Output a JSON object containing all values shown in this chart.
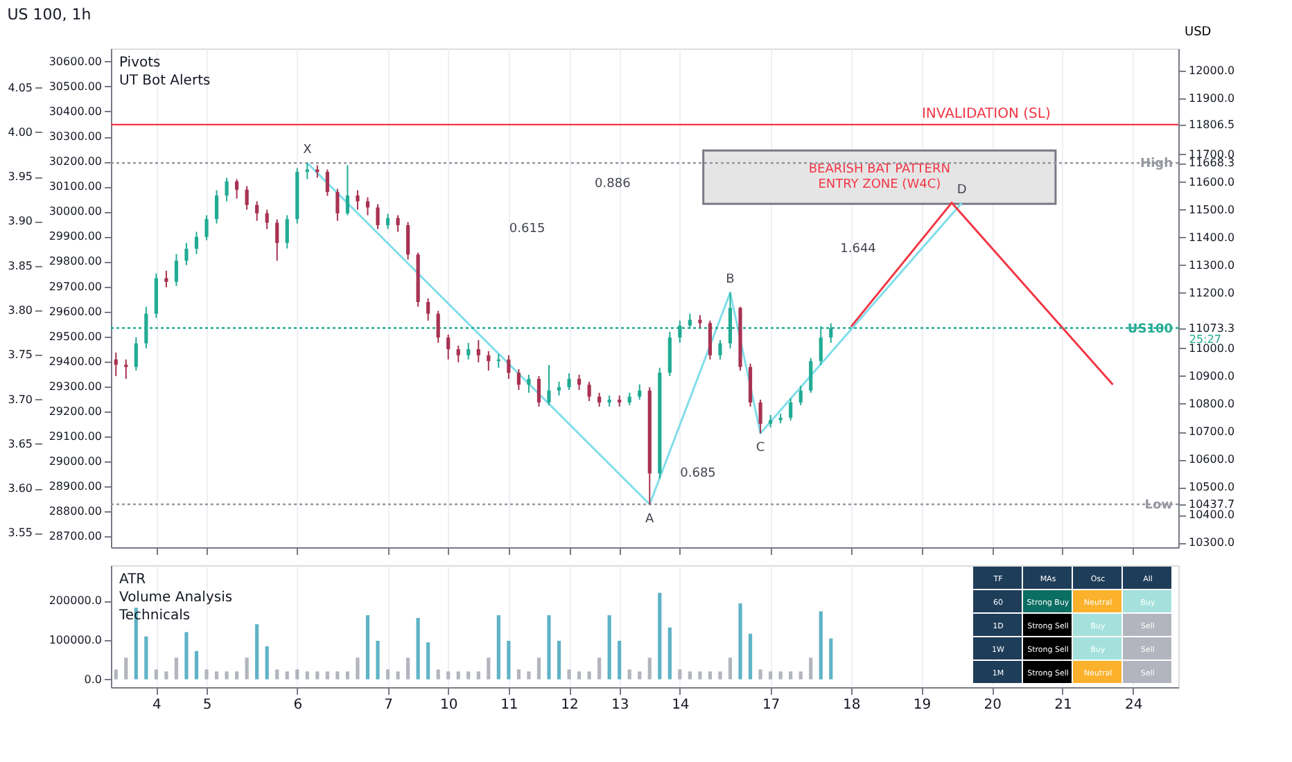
{
  "chart_data": [
    {
      "type": "candlestick",
      "title": "US 100, 1h",
      "annotations": [
        "Pivots",
        "UT Bot Alerts",
        "0.886",
        "0.615",
        "1.644",
        "0.685",
        "25:27"
      ],
      "bands": [
        {
          "axis": "y",
          "from": 11521,
          "to": 11713,
          "label": "BEARISH BAT PATTERN\nENTRY ZONE (W4C)",
          "color": "#e5e5e5"
        }
      ],
      "categories": [
        null,
        null,
        null,
        null,
        "4",
        null,
        null,
        null,
        null,
        "5",
        null,
        null,
        null,
        null,
        null,
        null,
        null,
        null,
        "6",
        null,
        null,
        null,
        null,
        null,
        null,
        null,
        null,
        "7",
        null,
        null,
        null,
        null,
        null,
        "10",
        null,
        null,
        null,
        null,
        null,
        "11",
        null,
        null,
        null,
        null,
        null,
        "12",
        null,
        null,
        null,
        null,
        "13",
        null,
        null,
        null,
        null,
        null,
        "14",
        null,
        null,
        null,
        null,
        null,
        null,
        null,
        null,
        "17",
        null,
        null,
        null,
        null,
        null,
        null,
        null,
        "18",
        null,
        null,
        null,
        null,
        null,
        null,
        "19",
        null,
        null,
        null,
        null,
        null,
        null,
        "20",
        null,
        null,
        null,
        null,
        null,
        null,
        "21",
        null,
        null,
        null,
        null,
        null,
        null,
        "24",
        null,
        null,
        null,
        null
      ],
      "ohlc": [
        [
          10960,
          10985,
          10900,
          10941
        ],
        [
          10941,
          10960,
          10890,
          10933
        ],
        [
          10933,
          11040,
          10920,
          11018
        ],
        [
          11018,
          11150,
          11000,
          11125
        ],
        [
          11125,
          11270,
          11110,
          11253
        ],
        [
          11253,
          11280,
          11220,
          11240
        ],
        [
          11240,
          11340,
          11225,
          11316
        ],
        [
          11316,
          11380,
          11300,
          11359
        ],
        [
          11359,
          11420,
          11340,
          11402
        ],
        [
          11402,
          11480,
          11390,
          11466
        ],
        [
          11466,
          11570,
          11450,
          11551
        ],
        [
          11551,
          11615,
          11530,
          11602
        ],
        [
          11602,
          11610,
          11540,
          11572
        ],
        [
          11572,
          11585,
          11500,
          11517
        ],
        [
          11517,
          11530,
          11460,
          11487
        ],
        [
          11487,
          11500,
          11430,
          11453
        ],
        [
          11453,
          11465,
          11316,
          11380
        ],
        [
          11380,
          11480,
          11360,
          11466
        ],
        [
          11466,
          11650,
          11450,
          11636
        ],
        [
          11636,
          11668.3,
          11610,
          11645
        ],
        [
          11645,
          11660,
          11615,
          11636
        ],
        [
          11636,
          11645,
          11550,
          11564
        ],
        [
          11564,
          11575,
          11460,
          11487
        ],
        [
          11487,
          11660,
          11480,
          11551
        ],
        [
          11551,
          11570,
          11500,
          11530
        ],
        [
          11530,
          11545,
          11480,
          11508
        ],
        [
          11508,
          11520,
          11430,
          11444
        ],
        [
          11444,
          11485,
          11430,
          11470
        ],
        [
          11470,
          11480,
          11420,
          11444
        ],
        [
          11444,
          11455,
          11320,
          11338
        ],
        [
          11338,
          11345,
          11150,
          11167
        ],
        [
          11167,
          11180,
          11100,
          11125
        ],
        [
          11125,
          11135,
          11020,
          11039
        ],
        [
          11039,
          11050,
          10960,
          10997
        ],
        [
          10997,
          11010,
          10950,
          10975
        ],
        [
          10975,
          11020,
          10960,
          10997
        ],
        [
          10997,
          11030,
          10950,
          10975
        ],
        [
          10975,
          10990,
          10920,
          10954
        ],
        [
          10954,
          10980,
          10930,
          10960
        ],
        [
          10960,
          10975,
          10890,
          10912
        ],
        [
          10912,
          10925,
          10850,
          10869
        ],
        [
          10869,
          10905,
          10840,
          10890
        ],
        [
          10890,
          10900,
          10790,
          10805
        ],
        [
          10805,
          10940,
          10795,
          10848
        ],
        [
          10848,
          10880,
          10830,
          10860
        ],
        [
          10860,
          10910,
          10850,
          10890
        ],
        [
          10890,
          10905,
          10850,
          10869
        ],
        [
          10869,
          10880,
          10810,
          10826
        ],
        [
          10826,
          10840,
          10790,
          10805
        ],
        [
          10805,
          10830,
          10790,
          10815
        ],
        [
          10815,
          10830,
          10790,
          10805
        ],
        [
          10805,
          10840,
          10795,
          10826
        ],
        [
          10826,
          10870,
          10815,
          10848
        ],
        [
          10848,
          10860,
          10437.7,
          10549
        ],
        [
          10549,
          10930,
          10530,
          10912
        ],
        [
          10912,
          11060,
          10900,
          11039
        ],
        [
          11039,
          11100,
          11020,
          11082
        ],
        [
          11082,
          11125,
          11070,
          11103
        ],
        [
          11103,
          11120,
          11075,
          11091
        ],
        [
          11091,
          11100,
          10960,
          10975
        ],
        [
          10975,
          11030,
          10960,
          11018
        ],
        [
          11018,
          11201,
          11000,
          11146
        ],
        [
          11146,
          11150,
          10920,
          10933
        ],
        [
          10933,
          10945,
          10790,
          10805
        ],
        [
          10805,
          10815,
          10694,
          10728
        ],
        [
          10728,
          10760,
          10715,
          10741
        ],
        [
          10741,
          10765,
          10730,
          10750
        ],
        [
          10750,
          10820,
          10740,
          10805
        ],
        [
          10805,
          10865,
          10795,
          10848
        ],
        [
          10848,
          10965,
          10840,
          10954
        ],
        [
          10954,
          11080,
          10940,
          11039
        ],
        [
          11039,
          11090,
          11020,
          11073.3
        ],
        null,
        null,
        null,
        null,
        null,
        null,
        null,
        null,
        null,
        null,
        null,
        null,
        null,
        null,
        null,
        null,
        null,
        null,
        null,
        null,
        null,
        null,
        null,
        null,
        null,
        null,
        null,
        null,
        null,
        null,
        null,
        null,
        null,
        null
      ],
      "colors": [
        "#a83252",
        "#a83252",
        "#22ab94",
        "#22ab94",
        "#22ab94",
        "#a83252",
        "#22ab94",
        "#22ab94",
        "#22ab94",
        "#22ab94",
        "#22ab94",
        "#22ab94",
        "#a83252",
        "#a83252",
        "#a83252",
        "#a83252",
        "#a83252",
        "#22ab94",
        "#22ab94",
        "#22ab94",
        "#a83252",
        "#a83252",
        "#a83252",
        "#22ab94",
        "#a83252",
        "#a83252",
        "#a83252",
        "#22ab94",
        "#a83252",
        "#a83252",
        "#a83252",
        "#a83252",
        "#a83252",
        "#a83252",
        "#a83252",
        "#22ab94",
        "#a83252",
        "#a83252",
        "#22ab94",
        "#a83252",
        "#a83252",
        "#22ab94",
        "#a83252",
        "#22ab94",
        "#22ab94",
        "#22ab94",
        "#a83252",
        "#a83252",
        "#a83252",
        "#22ab94",
        "#a83252",
        "#22ab94",
        "#22ab94",
        "#a83252",
        "#22ab94",
        "#22ab94",
        "#22ab94",
        "#22ab94",
        "#a83252",
        "#a83252",
        "#22ab94",
        "#22ab94",
        "#a83252",
        "#a83252",
        "#a83252",
        "#22ab94",
        "#22ab94",
        "#22ab94",
        "#22ab94",
        "#22ab94",
        "#22ab94",
        "#22ab94",
        null,
        null,
        null,
        null,
        null,
        null,
        null,
        null,
        null,
        null,
        null,
        null,
        null,
        null,
        null,
        null,
        null,
        null,
        null,
        null,
        null,
        null,
        null,
        null,
        null,
        null,
        null,
        null,
        null,
        null,
        null,
        null,
        null,
        null
      ],
      "series": [
        {
          "type": "line",
          "color": "#80deea",
          "values": [
            null,
            null,
            null,
            null,
            null,
            null,
            null,
            null,
            null,
            null,
            null,
            null,
            null,
            null,
            null,
            null,
            null,
            null,
            null,
            11668.3,
            null,
            null,
            null,
            null,
            null,
            null,
            null,
            null,
            null,
            null,
            null,
            null,
            null,
            null,
            null,
            null,
            null,
            null,
            null,
            null,
            null,
            null,
            null,
            null,
            null,
            null,
            null,
            null,
            null,
            null,
            null,
            null,
            null,
            10437.7,
            null,
            null,
            null,
            null,
            null,
            null,
            null,
            11201,
            null,
            null,
            10694,
            null,
            null,
            null,
            null,
            null,
            null,
            null,
            null,
            null,
            null,
            null,
            null,
            null,
            null,
            null,
            null,
            null,
            null,
            null,
            11525,
            null,
            null,
            null,
            null,
            null,
            null,
            null,
            null,
            null,
            null,
            null,
            null,
            null,
            null,
            null,
            null,
            null,
            null,
            null,
            null,
            null
          ],
          "value_labels": [
            null,
            null,
            null,
            null,
            null,
            null,
            null,
            null,
            null,
            null,
            null,
            null,
            null,
            null,
            null,
            null,
            null,
            null,
            null,
            "X",
            null,
            null,
            null,
            null,
            null,
            null,
            null,
            null,
            null,
            null,
            null,
            null,
            null,
            null,
            null,
            null,
            null,
            null,
            null,
            null,
            null,
            null,
            null,
            null,
            null,
            null,
            null,
            null,
            null,
            null,
            null,
            null,
            null,
            "A",
            null,
            null,
            null,
            null,
            null,
            null,
            null,
            "B",
            null,
            null,
            "C",
            null,
            null,
            null,
            null,
            null,
            null,
            null,
            null,
            null,
            null,
            null,
            null,
            null,
            null,
            null,
            null,
            null,
            null,
            null,
            "D",
            null,
            null,
            null,
            null,
            null,
            null,
            null,
            null,
            null,
            null,
            null,
            null,
            null,
            null,
            null,
            null,
            null,
            null,
            null,
            null,
            null
          ]
        },
        {
          "type": "line",
          "color": "#f23645",
          "values": [
            null,
            null,
            null,
            null,
            null,
            null,
            null,
            null,
            null,
            null,
            null,
            null,
            null,
            null,
            null,
            null,
            null,
            null,
            null,
            null,
            null,
            null,
            null,
            null,
            null,
            null,
            null,
            null,
            null,
            null,
            null,
            null,
            null,
            null,
            null,
            null,
            null,
            null,
            null,
            null,
            null,
            null,
            null,
            null,
            null,
            null,
            null,
            null,
            null,
            null,
            null,
            null,
            null,
            null,
            null,
            null,
            null,
            null,
            null,
            null,
            null,
            null,
            null,
            null,
            null,
            null,
            null,
            null,
            null,
            null,
            null,
            null,
            null,
            11078,
            null,
            null,
            null,
            null,
            null,
            null,
            null,
            null,
            null,
            11525,
            null,
            null,
            null,
            null,
            null,
            null,
            null,
            null,
            null,
            null,
            null,
            null,
            null,
            null,
            null,
            10869,
            null,
            null,
            null,
            null,
            null,
            null
          ]
        }
      ],
      "ref_lines": [
        {
          "axis": "y",
          "value": 11806.5,
          "label": "INVALIDATION (SL)",
          "color": "#f23645",
          "line_style": "solid"
        },
        {
          "axis": "y",
          "value": 11668.3,
          "label": "High",
          "color": "#9598a1",
          "line_style": "dotted"
        },
        {
          "axis": "y",
          "value": 11073.3,
          "label": "US100",
          "color": "#22ab94",
          "line_style": "dotted"
        },
        {
          "axis": "y",
          "value": 10437.7,
          "label": "Low",
          "color": "#9598a1",
          "line_style": "dotted"
        }
      ],
      "ylabel": "USD",
      "ylim": [
        10283,
        12081
      ],
      "yticks": [
        {
          "value": 10300,
          "label": "10300.0"
        },
        {
          "value": 10400,
          "label": "10400.0"
        },
        10437.7,
        {
          "value": 10500,
          "label": "10500.0"
        },
        {
          "value": 10600,
          "label": "10600.0"
        },
        {
          "value": 10700,
          "label": "10700.0"
        },
        {
          "value": 10800,
          "label": "10800.0"
        },
        {
          "value": 10900,
          "label": "10900.0"
        },
        {
          "value": 11000,
          "label": "11000.0"
        },
        11073.3,
        {
          "value": 11200,
          "label": "11200.0"
        },
        {
          "value": 11300,
          "label": "11300.0"
        },
        {
          "value": 11400,
          "label": "11400.0"
        },
        {
          "value": 11500,
          "label": "11500.0"
        },
        {
          "value": 11600,
          "label": "11600.0"
        },
        11668.3,
        {
          "value": 11700,
          "label": "11700.0"
        },
        11806.5,
        {
          "value": 11900,
          "label": "11900.0"
        },
        {
          "value": 12000,
          "label": "12000.0"
        }
      ],
      "y2lim": [
        28657,
        30652
      ],
      "y2ticks": [
        {
          "value": 28700,
          "label": "28700.00"
        },
        {
          "value": 28800,
          "label": "28800.00"
        },
        {
          "value": 28900,
          "label": "28900.00"
        },
        {
          "value": 29000,
          "label": "29000.00"
        },
        {
          "value": 29100,
          "label": "29100.00"
        },
        {
          "value": 29200,
          "label": "29200.00"
        },
        {
          "value": 29300,
          "label": "29300.00"
        },
        {
          "value": 29400,
          "label": "29400.00"
        },
        {
          "value": 29500,
          "label": "29500.00"
        },
        {
          "value": 29600,
          "label": "29600.00"
        },
        {
          "value": 29700,
          "label": "29700.00"
        },
        {
          "value": 29800,
          "label": "29800.00"
        },
        {
          "value": 29900,
          "label": "29900.00"
        },
        {
          "value": 30000,
          "label": "30000.00"
        },
        {
          "value": 30100,
          "label": "30100.00"
        },
        {
          "value": 30200,
          "label": "30200.00"
        },
        {
          "value": 30300,
          "label": "30300.00"
        },
        {
          "value": 30400,
          "label": "30400.00"
        },
        {
          "value": 30500,
          "label": "30500.00"
        },
        {
          "value": 30600,
          "label": "30600.00"
        }
      ],
      "y3lim": [
        3.534,
        4.094
      ],
      "y3ticks": [
        3.55,
        {
          "value": 3.6,
          "label": "3.60"
        },
        3.65,
        {
          "value": 3.7,
          "label": "3.70"
        },
        3.75,
        {
          "value": 3.8,
          "label": "3.80"
        },
        3.85,
        {
          "value": 3.9,
          "label": "3.90"
        },
        3.95,
        {
          "value": 4.0,
          "label": "4.00"
        },
        4.05
      ],
      "grid": "x",
      "tick_labels": "y"
    },
    {
      "type": "bar",
      "annotations": [
        "ATR",
        "Volume Analysis",
        "Technicals"
      ],
      "categories": [
        null,
        null,
        null,
        null,
        "4",
        null,
        null,
        null,
        null,
        "5",
        null,
        null,
        null,
        null,
        null,
        null,
        null,
        null,
        "6",
        null,
        null,
        null,
        null,
        null,
        null,
        null,
        null,
        "7",
        null,
        null,
        null,
        null,
        null,
        "10",
        null,
        null,
        null,
        null,
        null,
        "11",
        null,
        null,
        null,
        null,
        null,
        "12",
        null,
        null,
        null,
        null,
        "13",
        null,
        null,
        null,
        null,
        null,
        "14",
        null,
        null,
        null,
        null,
        null,
        null,
        null,
        null,
        "17",
        null,
        null,
        null,
        null,
        null,
        null,
        null,
        "18",
        null,
        null,
        null,
        null,
        null,
        null,
        "19",
        null,
        null,
        null,
        null,
        null,
        null,
        "20",
        null,
        null,
        null,
        null,
        null,
        null,
        "21",
        null,
        null,
        null,
        null,
        null,
        null,
        "24",
        null,
        null,
        null,
        null
      ],
      "values": [
        25000,
        55000,
        182000,
        109000,
        25000,
        20000,
        55000,
        120000,
        72000,
        25000,
        20000,
        20000,
        20000,
        55000,
        140000,
        84000,
        25000,
        20000,
        25000,
        20000,
        20000,
        20000,
        20000,
        20000,
        55000,
        163000,
        98000,
        25000,
        20000,
        55000,
        156000,
        94000,
        25000,
        20000,
        20000,
        20000,
        20000,
        55000,
        163000,
        98000,
        25000,
        20000,
        55000,
        163000,
        98000,
        25000,
        20000,
        20000,
        55000,
        163000,
        98000,
        25000,
        20000,
        55000,
        220000,
        132000,
        25000,
        20000,
        20000,
        20000,
        20000,
        55000,
        193000,
        116000,
        25000,
        20000,
        20000,
        20000,
        20000,
        55000,
        173000,
        104000,
        null,
        null,
        null,
        null,
        null,
        null,
        null,
        null,
        null,
        null,
        null,
        null,
        null,
        null,
        null,
        null,
        null,
        null,
        null,
        null,
        null,
        null,
        null,
        null,
        null,
        null,
        null,
        null,
        null,
        null,
        null,
        null,
        null,
        null
      ],
      "colors": [
        "#b2b5be",
        "#b2b5be",
        "#5fb3c6",
        "#5fb3c6",
        "#b2b5be",
        "#b2b5be",
        "#b2b5be",
        "#5fb3c6",
        "#5fb3c6",
        "#b2b5be",
        "#b2b5be",
        "#b2b5be",
        "#b2b5be",
        "#b2b5be",
        "#5fb3c6",
        "#5fb3c6",
        "#b2b5be",
        "#b2b5be",
        "#b2b5be",
        "#b2b5be",
        "#b2b5be",
        "#b2b5be",
        "#b2b5be",
        "#b2b5be",
        "#b2b5be",
        "#5fb3c6",
        "#5fb3c6",
        "#b2b5be",
        "#b2b5be",
        "#b2b5be",
        "#5fb3c6",
        "#5fb3c6",
        "#b2b5be",
        "#b2b5be",
        "#b2b5be",
        "#b2b5be",
        "#b2b5be",
        "#b2b5be",
        "#5fb3c6",
        "#5fb3c6",
        "#b2b5be",
        "#b2b5be",
        "#b2b5be",
        "#5fb3c6",
        "#5fb3c6",
        "#b2b5be",
        "#b2b5be",
        "#b2b5be",
        "#b2b5be",
        "#5fb3c6",
        "#5fb3c6",
        "#b2b5be",
        "#b2b5be",
        "#b2b5be",
        "#5fb3c6",
        "#5fb3c6",
        "#b2b5be",
        "#b2b5be",
        "#b2b5be",
        "#b2b5be",
        "#b2b5be",
        "#b2b5be",
        "#5fb3c6",
        "#5fb3c6",
        "#b2b5be",
        "#b2b5be",
        "#b2b5be",
        "#b2b5be",
        "#b2b5be",
        "#b2b5be",
        "#5fb3c6",
        "#5fb3c6",
        null,
        null,
        null,
        null,
        null,
        null,
        null,
        null,
        null,
        null,
        null,
        null,
        null,
        null,
        null,
        null,
        null,
        null,
        null,
        null,
        null,
        null,
        null,
        null,
        null,
        null,
        null,
        null,
        null,
        null,
        null,
        null,
        null,
        null
      ],
      "ylim": [
        -20000,
        290000
      ],
      "yticks": [
        {
          "value": 0,
          "label": "0.0"
        },
        {
          "value": 100000,
          "label": "100000.0"
        },
        {
          "value": 200000,
          "label": "200000.0"
        }
      ],
      "grid": "x"
    },
    {
      "type": "other",
      "color": "#1e3d59",
      "categories": [
        "TF",
        "MAs",
        "Osc",
        "All"
      ],
      "y_categories": [
        "60",
        "1D",
        "1W",
        "1M"
      ],
      "cell_labels": [
        [
          "Strong Buy",
          "Neutral",
          "Buy"
        ],
        [
          "Strong Sell",
          "Buy",
          "Sell"
        ],
        [
          "Strong Sell",
          "Buy",
          "Sell"
        ],
        [
          "Strong Sell",
          "Neutral",
          "Sell"
        ]
      ],
      "colors": [
        [
          "#0b6e62",
          "#fbb12c",
          "#a5e1dc"
        ],
        [
          "#000000",
          "#a5e1dc",
          "#b2b5be"
        ],
        [
          "#000000",
          "#a5e1dc",
          "#b2b5be"
        ],
        [
          "#000000",
          "#fbb12c",
          "#b2b5be"
        ]
      ]
    }
  ]
}
